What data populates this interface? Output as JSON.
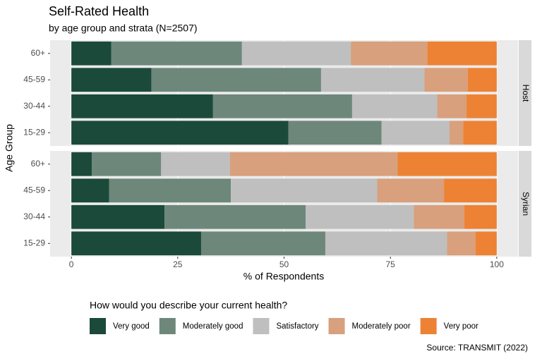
{
  "chart_data": {
    "type": "bar",
    "orientation": "horizontal",
    "stacked": true,
    "title": "Self-Rated Health",
    "subtitle": "by age group and strata (N=2507)",
    "x_label": "% of Respondents",
    "y_label": "Age Group",
    "legend_title": "How would you describe your current health?",
    "source": "Source: TRANSMIT (2022)",
    "categories": [
      "60+",
      "45-59",
      "30-44",
      "15-29"
    ],
    "xlim": [
      -5,
      105
    ],
    "xticks": [
      0,
      25,
      50,
      75,
      100
    ],
    "grid": true,
    "legend_position": "bottom",
    "series": [
      {
        "name": "Very good",
        "color": "#1b4a3a"
      },
      {
        "name": "Moderately good",
        "color": "#6e877b"
      },
      {
        "name": "Satisfactory",
        "color": "#bfbfbf"
      },
      {
        "name": "Moderately poor",
        "color": "#d8a07c"
      },
      {
        "name": "Very poor",
        "color": "#ed8234"
      }
    ],
    "facets": [
      {
        "label": "Host",
        "values": [
          [
            9.4,
            18.8,
            33.3,
            51.0
          ],
          [
            30.7,
            39.9,
            32.7,
            21.9
          ],
          [
            25.6,
            24.3,
            20.0,
            16.0
          ],
          [
            18.0,
            10.2,
            6.9,
            3.2
          ],
          [
            16.3,
            6.8,
            7.1,
            7.9
          ]
        ]
      },
      {
        "label": "Syrian",
        "values": [
          [
            4.8,
            8.9,
            21.9,
            30.5
          ],
          [
            16.3,
            28.6,
            33.2,
            29.2
          ],
          [
            16.2,
            34.4,
            25.4,
            28.6
          ],
          [
            39.4,
            15.7,
            11.9,
            6.7
          ],
          [
            23.3,
            12.4,
            7.6,
            5.0
          ]
        ]
      }
    ]
  }
}
